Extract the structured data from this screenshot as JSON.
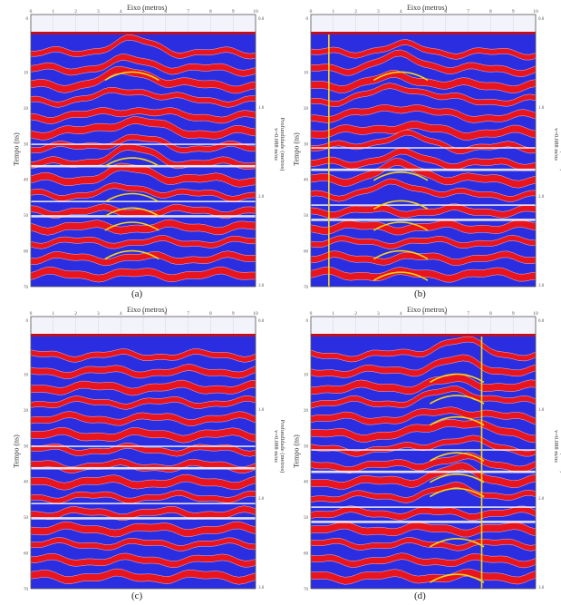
{
  "figure": {
    "x_title": "Eixo (metros)",
    "y_left_title": "Tempo (ns)",
    "y_right_title_line1": "Profundidade (metros)",
    "y_right_title_line2": "v=0.088 m/ns",
    "x_ticks": [
      "0",
      "1",
      "2",
      "3",
      "4",
      "5",
      "6",
      "7",
      "8",
      "9",
      "10"
    ],
    "time_ticks": [
      "0",
      "10",
      "20",
      "30",
      "40",
      "50",
      "60",
      "70"
    ],
    "depth_ticks": [
      "0.0",
      "1.0",
      "2.0",
      "3.0"
    ],
    "colors": {
      "positive": "#e8141e",
      "negative": "#2a2ee0",
      "highlight": "#f6d31c",
      "background_band": "#f2f3fb"
    }
  },
  "panels": [
    {
      "id": "a",
      "caption": "(a)",
      "marker_x": null,
      "hyperbola_apex_x": 4.5,
      "hyperbola_apex_t": [
        10,
        34,
        44,
        48,
        52,
        60
      ]
    },
    {
      "id": "b",
      "caption": "(b)",
      "marker_x": 0.8,
      "hyperbola_apex_x": 4.0,
      "hyperbola_apex_t": [
        10,
        38,
        46,
        52,
        60,
        66
      ]
    },
    {
      "id": "c",
      "caption": "(c)",
      "marker_x": null,
      "hyperbola_apex_x": null,
      "hyperbola_apex_t": []
    },
    {
      "id": "d",
      "caption": "(d)",
      "marker_x": 7.6,
      "hyperbola_apex_x": 6.5,
      "hyperbola_apex_t": [
        10,
        16,
        22,
        32,
        38,
        42,
        56,
        66
      ]
    }
  ]
}
